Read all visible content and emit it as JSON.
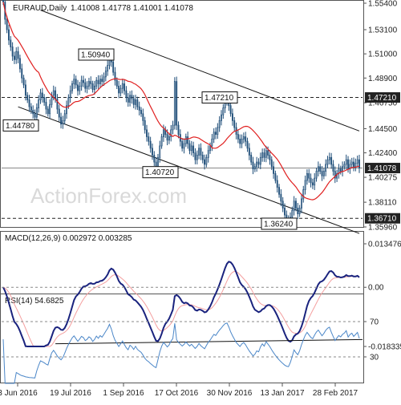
{
  "header": {
    "symbol": "EURAUD,Daily",
    "ohlc": "1.41008 1.41778 1.41001 1.41078"
  },
  "watermark": "ActionForex.com",
  "colors": {
    "candle": "#1f4e79",
    "ma": "#e02020",
    "trendline": "#111111",
    "macd": "#1a237e",
    "signal": "#f4a0a0",
    "rsi": "#4a86c8",
    "price_box_bg": "#222222",
    "price_box_text": "#ffffff"
  },
  "chart_data": [
    {
      "type": "candlestick",
      "title": "EURAUD,Daily",
      "ylim": [
        1.3596,
        1.554
      ],
      "x_tick_labels": [
        "3 Jun 2016",
        "19 Jul 2016",
        "1 Sep 2016",
        "17 Oct 2016",
        "30 Nov 2016",
        "13 Jan 2017",
        "28 Feb 2017"
      ],
      "y_tick_labels": [
        "1.55400",
        "1.53100",
        "1.51000",
        "1.48900",
        "1.46750",
        "1.44500",
        "1.42400",
        "1.40275",
        "1.38110",
        "1.35960"
      ],
      "horizontal_levels": [
        {
          "label": "1.47210",
          "value": 1.4721,
          "style": "dashed"
        },
        {
          "label": "1.36710",
          "value": 1.3671,
          "style": "dashed"
        },
        {
          "label": "1.41078",
          "value": 1.41078,
          "style": "solid"
        }
      ],
      "right_axis_boxes": [
        "1.47210",
        "1.41078",
        "1.36710"
      ],
      "annotations": [
        {
          "text": "1.50940",
          "value": 1.5094
        },
        {
          "text": "1.47210",
          "value": 1.4721
        },
        {
          "text": "1.44780",
          "value": 1.4478
        },
        {
          "text": "1.40720",
          "value": 1.4072
        },
        {
          "text": "1.36240",
          "value": 1.3624
        }
      ],
      "close_series": [
        1.555,
        1.54,
        1.531,
        1.522,
        1.516,
        1.508,
        1.505,
        1.512,
        1.506,
        1.497,
        1.489,
        1.483,
        1.474,
        1.47,
        1.464,
        1.461,
        1.458,
        1.455,
        1.463,
        1.47,
        1.476,
        1.472,
        1.468,
        1.462,
        1.458,
        1.466,
        1.474,
        1.478,
        1.471,
        1.462,
        1.455,
        1.449,
        1.452,
        1.458,
        1.465,
        1.472,
        1.478,
        1.484,
        1.488,
        1.483,
        1.478,
        1.482,
        1.487,
        1.485,
        1.48,
        1.482,
        1.486,
        1.484,
        1.479,
        1.482,
        1.487,
        1.484,
        1.488,
        1.486,
        1.49,
        1.495,
        1.5,
        1.508,
        1.503,
        1.494,
        1.487,
        1.482,
        1.476,
        1.48,
        1.484,
        1.478,
        1.472,
        1.468,
        1.474,
        1.471,
        1.466,
        1.47,
        1.464,
        1.461,
        1.458,
        1.452,
        1.444,
        1.438,
        1.434,
        1.428,
        1.422,
        1.416,
        1.412,
        1.42,
        1.43,
        1.438,
        1.444,
        1.44,
        1.435,
        1.438,
        1.444,
        1.448,
        1.486,
        1.448,
        1.44,
        1.434,
        1.428,
        1.432,
        1.438,
        1.432,
        1.426,
        1.43,
        1.424,
        1.418,
        1.422,
        1.428,
        1.422,
        1.418,
        1.414,
        1.42,
        1.426,
        1.43,
        1.436,
        1.442,
        1.44,
        1.446,
        1.452,
        1.457,
        1.463,
        1.468,
        1.47,
        1.465,
        1.458,
        1.452,
        1.446,
        1.44,
        1.436,
        1.432,
        1.436,
        1.438,
        1.434,
        1.428,
        1.422,
        1.416,
        1.41,
        1.412,
        1.416,
        1.414,
        1.42,
        1.424,
        1.42,
        1.426,
        1.422,
        1.418,
        1.412,
        1.406,
        1.4,
        1.394,
        1.388,
        1.382,
        1.376,
        1.37,
        1.366,
        1.364,
        1.368,
        1.374,
        1.382,
        1.376,
        1.371,
        1.376,
        1.384,
        1.392,
        1.4,
        1.406,
        1.402,
        1.398,
        1.396,
        1.402,
        1.408,
        1.412,
        1.408,
        1.404,
        1.408,
        1.414,
        1.418,
        1.42,
        1.414,
        1.408,
        1.402,
        1.406,
        1.41,
        1.408,
        1.412,
        1.414,
        1.418,
        1.41,
        1.414,
        1.416,
        1.412,
        1.415,
        1.418,
        1.41078
      ]
    },
    {
      "type": "line",
      "title": "MACD(12,26,9) 0.002972 0.003285",
      "ylim": [
        -0.018335,
        0.013476
      ],
      "y_tick_labels": [
        "0.013476",
        "0.00",
        "-0.018335"
      ]
    },
    {
      "type": "line",
      "title": "RSI(14) 54.6825",
      "ylim": [
        0,
        100
      ],
      "y_tick_labels": [
        "70",
        "30"
      ],
      "levels": [
        70,
        30
      ]
    }
  ]
}
